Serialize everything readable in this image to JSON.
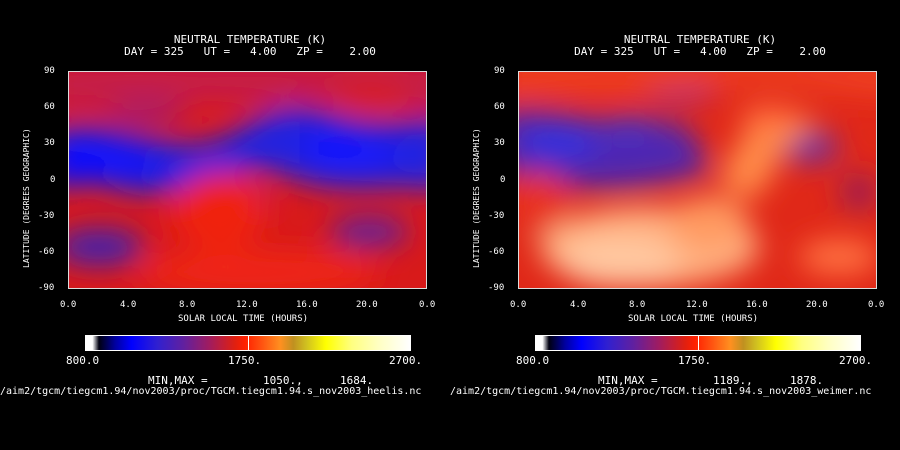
{
  "chart_data": [
    {
      "type": "heatmap",
      "title": "NEUTRAL TEMPERATURE (K)",
      "subtitle": "DAY = 325   UT =   4.00   ZP =    2.00",
      "xlabel": "SOLAR LOCAL TIME (HOURS)",
      "ylabel": "LATITUDE (DEGREES GEOGRAPHIC)",
      "xticks": [
        "0.0",
        "4.0",
        "8.0",
        "12.0",
        "16.0",
        "20.0",
        "0.0"
      ],
      "yticks": [
        "90",
        "60",
        "30",
        "0",
        "-30",
        "-60",
        "-90"
      ],
      "xlim": [
        0,
        24
      ],
      "ylim": [
        -90,
        90
      ],
      "colorbar": {
        "min": "800.0",
        "mid": "1750.",
        "max": "2700.",
        "range": [
          800,
          2700
        ]
      },
      "minmax_label": "MIN,MAX =",
      "min": "1050.,",
      "max": "1684.",
      "min_value": 1050,
      "max_value": 1684,
      "source": "/aim2/tgcm/tiegcm1.94/nov2003/proc/TGCM.tiegcm1.94.s_nov2003_heelis.nc",
      "field_description": "blue band (~1050-1300 K) at mid-high northern latitudes 15-50N across most local times; red (~1550-1684 K) over southern hemisphere and near north pole; warm bulge around 8-12 LT at low latitudes"
    },
    {
      "type": "heatmap",
      "title": "NEUTRAL TEMPERATURE (K)",
      "subtitle": "DAY = 325   UT =   4.00   ZP =    2.00",
      "xlabel": "SOLAR LOCAL TIME (HOURS)",
      "ylabel": "LATITUDE (DEGREES GEOGRAPHIC)",
      "xticks": [
        "0.0",
        "4.0",
        "8.0",
        "12.0",
        "16.0",
        "20.0",
        "0.0"
      ],
      "yticks": [
        "90",
        "60",
        "30",
        "0",
        "-30",
        "-60",
        "-90"
      ],
      "xlim": [
        0,
        24
      ],
      "ylim": [
        -90,
        90
      ],
      "colorbar": {
        "min": "800.0",
        "mid": "1750.",
        "max": "2700.",
        "range": [
          800,
          2700
        ]
      },
      "minmax_label": "MIN,MAX =",
      "min": "1189.,",
      "max": "1878.",
      "min_value": 1189,
      "max_value": 1878,
      "source": "/aim2/tgcm/tiegcm1.94/nov2003/proc/TGCM.tiegcm1.94.s_nov2003_weimer.nc",
      "field_description": "predominantly red (~1500-1700 K); orange/peach maximum (~1800-1878 K) over southern latitudes 4-16 LT and a warm tongue near 16 LT at high northern latitudes; bluish-purple minima (~1200-1350 K) at northern mid-latitudes around 0-8 LT"
    }
  ]
}
